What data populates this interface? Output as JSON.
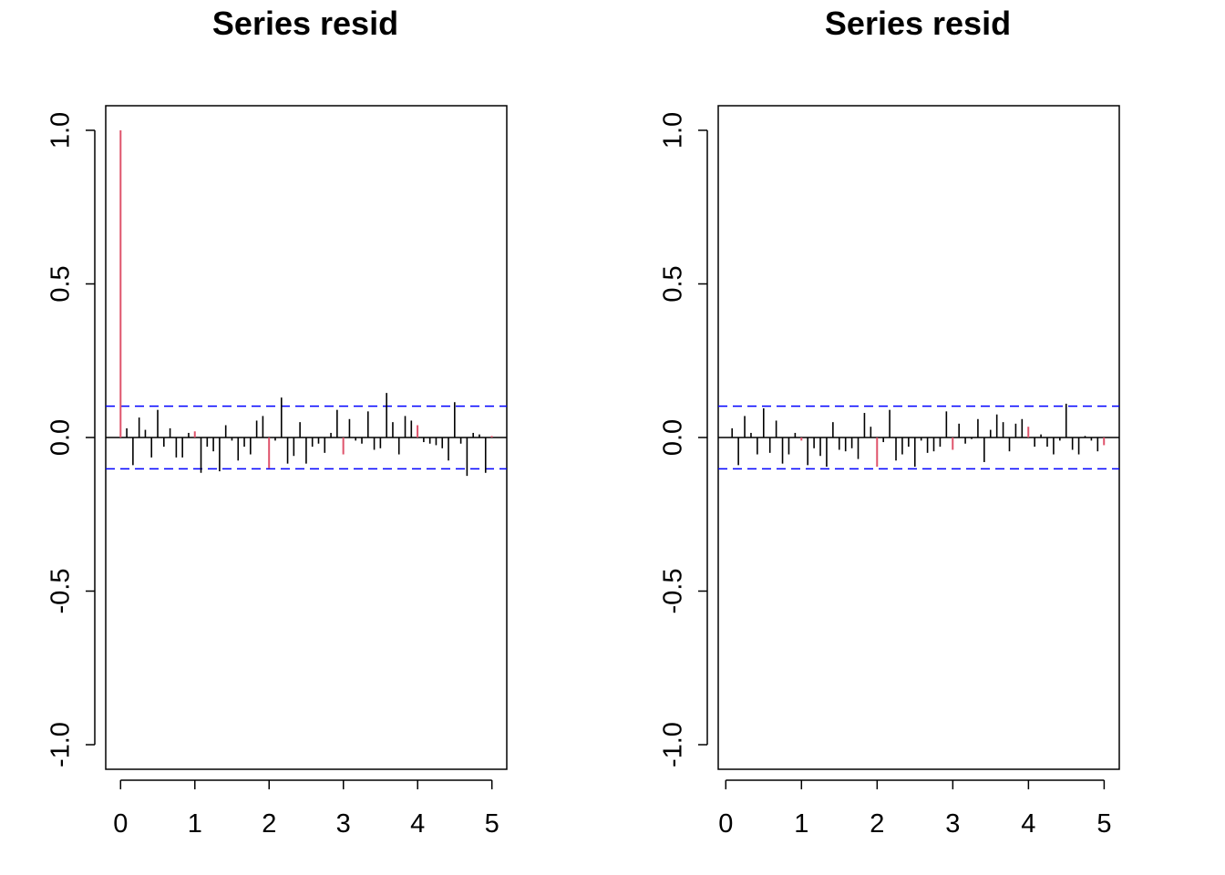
{
  "colors": {
    "axis": "#000000",
    "ci": "#0000ff",
    "seasonal": "#df536b",
    "bar": "#000000"
  },
  "chart_data": [
    {
      "type": "bar",
      "title": "Series  resid",
      "xlabel": "",
      "ylabel": "",
      "xlim": [
        -0.2,
        5.2
      ],
      "ylim": [
        -1.08,
        1.08
      ],
      "x_ticks": [
        "0",
        "1",
        "2",
        "3",
        "4",
        "5"
      ],
      "y_ticks": [
        "-1.0",
        "-0.5",
        "0.0",
        "0.5",
        "1.0"
      ],
      "ci": 0.102,
      "lag_step": 0.0833,
      "values": [
        1.0,
        0.03,
        -0.09,
        0.065,
        0.025,
        -0.065,
        0.09,
        -0.03,
        0.03,
        -0.065,
        -0.065,
        0.015,
        0.02,
        -0.115,
        -0.03,
        -0.045,
        -0.11,
        0.04,
        -0.01,
        -0.075,
        -0.03,
        -0.055,
        0.055,
        0.07,
        -0.1,
        -0.01,
        0.13,
        -0.085,
        -0.06,
        0.05,
        -0.085,
        -0.03,
        -0.02,
        -0.05,
        0.015,
        0.09,
        -0.055,
        0.06,
        -0.01,
        -0.02,
        0.085,
        -0.04,
        -0.035,
        0.145,
        0.05,
        -0.055,
        0.07,
        0.055,
        0.04,
        -0.015,
        -0.02,
        -0.025,
        -0.035,
        -0.075,
        0.115,
        -0.02,
        -0.125,
        0.015,
        0.01,
        -0.115,
        0.005
      ]
    },
    {
      "type": "bar",
      "title": "Series  resid",
      "xlabel": "",
      "ylabel": "",
      "xlim": [
        -0.1,
        5.2
      ],
      "ylim": [
        -1.08,
        1.08
      ],
      "x_ticks": [
        "0",
        "1",
        "2",
        "3",
        "4",
        "5"
      ],
      "y_ticks": [
        "-1.0",
        "-0.5",
        "0.0",
        "0.5",
        "1.0"
      ],
      "ci": 0.102,
      "lag_step": 0.0833,
      "start_lag": 1,
      "values": [
        0.03,
        -0.09,
        0.07,
        0.015,
        -0.055,
        0.095,
        -0.05,
        0.055,
        -0.085,
        -0.055,
        0.015,
        -0.01,
        -0.09,
        -0.035,
        -0.06,
        -0.095,
        0.05,
        -0.04,
        -0.045,
        -0.035,
        -0.07,
        0.08,
        0.035,
        -0.095,
        -0.015,
        0.09,
        -0.075,
        -0.055,
        -0.03,
        -0.095,
        -0.01,
        -0.05,
        -0.045,
        -0.03,
        0.085,
        -0.04,
        0.045,
        -0.02,
        -0.005,
        0.06,
        -0.08,
        0.025,
        0.075,
        0.05,
        -0.045,
        0.045,
        0.06,
        0.035,
        -0.03,
        0.01,
        -0.03,
        -0.055,
        -0.01,
        0.11,
        -0.04,
        -0.055,
        0.005,
        -0.01,
        -0.045,
        -0.025
      ]
    }
  ]
}
